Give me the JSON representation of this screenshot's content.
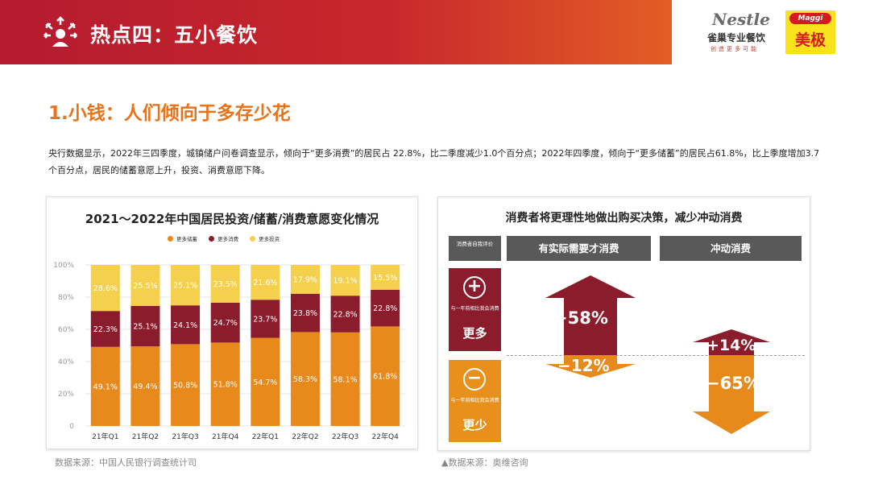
{
  "header": {
    "title": "热点四：五小餐饮",
    "nestle_brand": "Nestle",
    "nestle_cn": "雀巢专业餐饮",
    "nestle_slogan": "创造更多可能",
    "maggi_brand": "Maggi",
    "maggi_cn": "美极",
    "icon": "people-network-icon"
  },
  "section": {
    "title": "1.小钱：人们倾向于多存少花",
    "intro": "央行数据显示，2022年三四季度，城镇储户问卷调查显示，倾向于“更多消费”的居民占 22.8%，比二季度减少1.0个百分点；2022年四季度，倾向于“更多储蓄”的居民占61.8%，比上季度增加3.7个百分点，居民的储蓄意愿上升，投资、消费意愿下降。"
  },
  "colors": {
    "savings": "#e8891c",
    "consumption": "#8b1c2c",
    "investment": "#f4d04c",
    "accent": "#e8731a"
  },
  "chart_data": {
    "type": "bar",
    "stacked": true,
    "title": "2021～2022年中国居民投资/储蓄/消费意愿变化情况",
    "categories": [
      "21年Q1",
      "21年Q2",
      "21年Q3",
      "21年Q4",
      "22年Q1",
      "22年Q2",
      "22年Q3",
      "22年Q4"
    ],
    "series": [
      {
        "name": "更多储蓄",
        "values": [
          49.1,
          49.4,
          50.8,
          51.8,
          54.7,
          58.3,
          58.1,
          61.8
        ],
        "color": "#e8891c"
      },
      {
        "name": "更多消费",
        "values": [
          22.3,
          25.1,
          24.1,
          24.7,
          23.7,
          23.8,
          22.8,
          22.8
        ],
        "color": "#8b1c2c"
      },
      {
        "name": "更多投资",
        "values": [
          28.6,
          25.5,
          25.1,
          23.5,
          21.6,
          17.9,
          19.1,
          15.5
        ],
        "color": "#f4d04c"
      }
    ],
    "yticks": [
      "0",
      "20%",
      "40%",
      "60%",
      "80%",
      "100%"
    ],
    "ylim": [
      0,
      100
    ],
    "legend_position": "top"
  },
  "source_left": "数据来源：中国人民银行调查统计司",
  "source_right": "▲数据来源：奥维咨询",
  "right_panel": {
    "title": "消费者将更理性地做出购买决策，减少冲动消费",
    "self_eval": "消费者自我评价",
    "col_rational": "有实际需要才消费",
    "col_impulse": "冲动消费",
    "more": {
      "symbol": "+",
      "note": "与一年前相比我会消费",
      "label": "更多"
    },
    "less": {
      "symbol": "−",
      "note": "与一年前相比我会消费",
      "label": "更少"
    },
    "values": {
      "rational_more": "+58%",
      "rational_less": "−12%",
      "impulse_more": "+14%",
      "impulse_less": "−65%"
    }
  }
}
